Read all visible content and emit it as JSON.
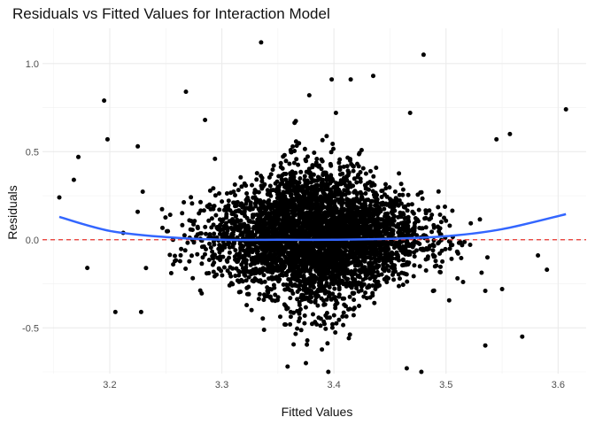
{
  "chart_data": {
    "type": "scatter",
    "title": "Residuals vs Fitted Values for Interaction Model",
    "xlabel": "Fitted Values",
    "ylabel": "Residuals",
    "xlim": [
      3.14,
      3.625
    ],
    "ylim": [
      -0.76,
      1.2
    ],
    "x_ticks": [
      3.2,
      3.3,
      3.4,
      3.5,
      3.6
    ],
    "x_tick_labels": [
      "3.2",
      "3.3",
      "3.4",
      "3.5",
      "3.6"
    ],
    "y_ticks": [
      -0.5,
      0.0,
      0.5,
      1.0
    ],
    "y_tick_labels": [
      "-0.5",
      "0.0",
      "0.5",
      "1.0"
    ],
    "grid": true,
    "reference_line": {
      "y": 0,
      "color": "#e8332b",
      "style": "dashed"
    },
    "smooth": {
      "color": "#3366ff",
      "x": [
        3.155,
        3.2,
        3.25,
        3.3,
        3.35,
        3.4,
        3.45,
        3.5,
        3.55,
        3.607
      ],
      "y": [
        0.13,
        0.05,
        0.015,
        0.0,
        0.0,
        0.0,
        0.005,
        0.02,
        0.06,
        0.145
      ]
    },
    "series": [
      {
        "color": "#000000",
        "cluster_center": [
          3.385,
          0.02
        ],
        "point_count": 4000,
        "points": [
          [
            3.155,
            0.24
          ],
          [
            3.168,
            0.34
          ],
          [
            3.172,
            0.47
          ],
          [
            3.195,
            0.79
          ],
          [
            3.198,
            0.57
          ],
          [
            3.225,
            0.53
          ],
          [
            3.268,
            0.84
          ],
          [
            3.285,
            0.68
          ],
          [
            3.335,
            1.12
          ],
          [
            3.378,
            0.82
          ],
          [
            3.398,
            0.91
          ],
          [
            3.415,
            0.91
          ],
          [
            3.435,
            0.93
          ],
          [
            3.48,
            1.05
          ],
          [
            3.468,
            0.72
          ],
          [
            3.545,
            0.57
          ],
          [
            3.557,
            0.6
          ],
          [
            3.607,
            0.74
          ],
          [
            3.59,
            -0.17
          ],
          [
            3.568,
            -0.55
          ],
          [
            3.535,
            -0.6
          ],
          [
            3.478,
            -0.75
          ],
          [
            3.465,
            -0.73
          ],
          [
            3.395,
            -0.75
          ],
          [
            3.375,
            -0.7
          ],
          [
            3.205,
            -0.41
          ],
          [
            3.228,
            -0.41
          ],
          [
            3.18,
            -0.16
          ],
          [
            3.535,
            -0.29
          ],
          [
            3.55,
            -0.28
          ]
        ]
      }
    ]
  }
}
